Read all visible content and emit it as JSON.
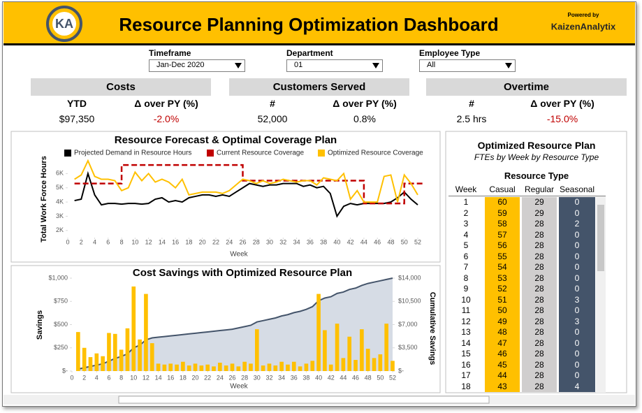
{
  "header": {
    "logo": "KA",
    "title": "Resource Planning Optimization Dashboard",
    "powered_by": "Powered by",
    "brand": "KaizenAnalytix"
  },
  "filters": [
    {
      "label": "Timeframe",
      "value": "Jan-Dec 2020"
    },
    {
      "label": "Department",
      "value": "01"
    },
    {
      "label": "Employee Type",
      "value": "All"
    }
  ],
  "kpis": [
    {
      "title": "Costs",
      "metrics": [
        {
          "label": "YTD",
          "value": "$97,350"
        },
        {
          "label": "Δ over PY (%)",
          "value": "-2.0%",
          "color": "#c00000"
        }
      ]
    },
    {
      "title": "Customers Served",
      "metrics": [
        {
          "label": "#",
          "value": "52,000"
        },
        {
          "label": "Δ over PY (%)",
          "value": "0.8%"
        }
      ]
    },
    {
      "title": "Overtime",
      "metrics": [
        {
          "label": "#",
          "value": "2.5 hrs"
        },
        {
          "label": "Δ over PY (%)",
          "value": "-15.0%",
          "color": "#c00000"
        }
      ]
    }
  ],
  "chart_data": [
    {
      "type": "line",
      "title": "Resource Forecast & Optimal Coverage Plan",
      "ylabel": "Total Work Force Hours",
      "xlabel": "Week",
      "x": [
        1,
        2,
        3,
        4,
        5,
        6,
        7,
        8,
        9,
        10,
        11,
        12,
        13,
        14,
        15,
        16,
        17,
        18,
        19,
        20,
        21,
        22,
        23,
        24,
        25,
        26,
        27,
        28,
        29,
        30,
        31,
        32,
        33,
        34,
        35,
        36,
        37,
        38,
        39,
        40,
        41,
        42,
        43,
        44,
        45,
        46,
        47,
        48,
        49,
        50,
        51,
        52
      ],
      "xlim": [
        0,
        52
      ],
      "xticks": [
        0,
        2,
        4,
        6,
        8,
        10,
        12,
        14,
        16,
        18,
        20,
        22,
        24,
        26,
        28,
        30,
        32,
        34,
        36,
        38,
        40,
        42,
        44,
        46,
        48,
        50,
        52
      ],
      "ylim": [
        1500,
        7000
      ],
      "yticks": [
        {
          "value": 2000,
          "label": "2K"
        },
        {
          "value": 3000,
          "label": "3K"
        },
        {
          "value": 4000,
          "label": "4K"
        },
        {
          "value": 5000,
          "label": "5K"
        },
        {
          "value": 6000,
          "label": "6K"
        }
      ],
      "legend": "top",
      "series": [
        {
          "name": "Projected Demand in Resource Hours",
          "color": "#000000",
          "values": [
            4100,
            4200,
            6000,
            4500,
            3800,
            3900,
            3900,
            3850,
            3900,
            3900,
            3850,
            3900,
            4200,
            4300,
            4000,
            4100,
            4000,
            4300,
            4400,
            4500,
            4500,
            4400,
            4500,
            4400,
            4700,
            5000,
            5300,
            5200,
            5100,
            5200,
            5200,
            5300,
            5300,
            5300,
            5100,
            5200,
            5000,
            5100,
            4600,
            3000,
            3700,
            3900,
            3800,
            3900,
            3900,
            3900,
            3900,
            4000,
            4300,
            4700,
            4200,
            3800
          ]
        },
        {
          "name": "Current Resource Coverage",
          "color": "#c00000",
          "dashed": true,
          "step": true,
          "values": [
            5300,
            5300,
            5300,
            5300,
            5300,
            5300,
            5300,
            6600,
            6600,
            6600,
            6600,
            6600,
            6600,
            6600,
            6600,
            6600,
            6600,
            6600,
            6600,
            6600,
            6600,
            6600,
            6600,
            6600,
            6600,
            5500,
            5500,
            5500,
            5500,
            5500,
            5500,
            5500,
            5500,
            5500,
            5500,
            5500,
            5500,
            5500,
            5500,
            5500,
            5500,
            5500,
            5500,
            3900,
            3900,
            3900,
            3900,
            3900,
            3900,
            5300,
            5300,
            5300
          ]
        },
        {
          "name": "Optimized Resource Coverage",
          "color": "#ffc000",
          "values": [
            5600,
            5900,
            6900,
            5800,
            5600,
            5600,
            5500,
            4800,
            5000,
            6100,
            5500,
            6000,
            5400,
            5600,
            5400,
            5000,
            5600,
            4500,
            4600,
            4700,
            4700,
            4700,
            4600,
            4800,
            5200,
            5600,
            5500,
            5300,
            5500,
            5300,
            5400,
            5600,
            5500,
            5400,
            5500,
            5500,
            5200,
            5700,
            5600,
            5500,
            6000,
            4200,
            4800,
            4000,
            4000,
            4000,
            5800,
            5900,
            4000,
            5900,
            5300,
            4500
          ]
        }
      ]
    },
    {
      "type": "combo",
      "title": "Cost Savings with Optimized Resource Plan",
      "ylabel": "Savings",
      "y2label": "Cumulative Savings",
      "xlabel": "Week",
      "x": [
        1,
        2,
        3,
        4,
        5,
        6,
        7,
        8,
        9,
        10,
        11,
        12,
        13,
        14,
        15,
        16,
        17,
        18,
        19,
        20,
        21,
        22,
        23,
        24,
        25,
        26,
        27,
        28,
        29,
        30,
        31,
        32,
        33,
        34,
        35,
        36,
        37,
        38,
        39,
        40,
        41,
        42,
        43,
        44,
        45,
        46,
        47,
        48,
        49,
        50,
        51,
        52
      ],
      "xlim": [
        0,
        52
      ],
      "xticks": [
        0,
        2,
        4,
        6,
        8,
        10,
        12,
        14,
        16,
        18,
        20,
        22,
        24,
        26,
        28,
        30,
        32,
        34,
        36,
        38,
        40,
        42,
        44,
        46,
        48,
        50,
        52
      ],
      "ylim": [
        0,
        1000
      ],
      "yticks": [
        {
          "value": 0,
          "label": "$-"
        },
        {
          "value": 250,
          "label": "$250"
        },
        {
          "value": 500,
          "label": "$500"
        },
        {
          "value": 750,
          "label": "$750"
        },
        {
          "value": 1000,
          "label": "$1,000"
        }
      ],
      "y2lim": [
        0,
        14000
      ],
      "y2ticks": [
        {
          "value": 0,
          "label": "$-"
        },
        {
          "value": 3500,
          "label": "$3,500"
        },
        {
          "value": 7000,
          "label": "$7,000"
        },
        {
          "value": 10500,
          "label": "$10,500"
        },
        {
          "value": 14000,
          "label": "$14,000"
        }
      ],
      "series": [
        {
          "type": "bar",
          "color": "#ffc000",
          "values": [
            420,
            250,
            150,
            190,
            160,
            410,
            400,
            230,
            460,
            910,
            340,
            830,
            300,
            80,
            70,
            80,
            70,
            100,
            60,
            80,
            60,
            70,
            50,
            90,
            60,
            80,
            50,
            100,
            80,
            450,
            60,
            80,
            60,
            100,
            70,
            100,
            50,
            80,
            110,
            830,
            440,
            70,
            510,
            140,
            370,
            120,
            450,
            240,
            140,
            180,
            510,
            110
          ]
        },
        {
          "type": "area",
          "axis": "y2",
          "color": "#44546a",
          "fill": "#d6dce5",
          "values": [
            300,
            500,
            700,
            900,
            1100,
            1500,
            1900,
            2200,
            2600,
            3500,
            3900,
            4700,
            5000,
            5100,
            5200,
            5300,
            5400,
            5500,
            5600,
            5700,
            5800,
            5900,
            6000,
            6100,
            6200,
            6300,
            6500,
            6700,
            6900,
            7400,
            7600,
            7800,
            8000,
            8300,
            8500,
            8800,
            9000,
            9300,
            9700,
            10600,
            11000,
            11200,
            11700,
            11900,
            12300,
            12500,
            12900,
            13200,
            13400,
            13600,
            13800,
            14000
          ]
        }
      ]
    }
  ],
  "table": {
    "title": "Optimized Resource Plan",
    "subtitle": "FTEs by Week by Resource Type",
    "group_header": "Resource Type",
    "columns": [
      "Week",
      "Casual",
      "Regular",
      "Seasonal"
    ],
    "rows": [
      [
        1,
        60,
        29,
        0
      ],
      [
        2,
        59,
        29,
        0
      ],
      [
        3,
        58,
        28,
        2
      ],
      [
        4,
        57,
        28,
        0
      ],
      [
        5,
        56,
        28,
        0
      ],
      [
        6,
        55,
        28,
        0
      ],
      [
        7,
        54,
        28,
        0
      ],
      [
        8,
        53,
        28,
        0
      ],
      [
        9,
        52,
        28,
        0
      ],
      [
        10,
        51,
        28,
        3
      ],
      [
        11,
        50,
        28,
        0
      ],
      [
        12,
        49,
        28,
        3
      ],
      [
        13,
        48,
        28,
        0
      ],
      [
        14,
        47,
        28,
        0
      ],
      [
        15,
        46,
        28,
        0
      ],
      [
        16,
        45,
        28,
        0
      ],
      [
        17,
        44,
        28,
        0
      ],
      [
        18,
        43,
        28,
        4
      ]
    ]
  }
}
